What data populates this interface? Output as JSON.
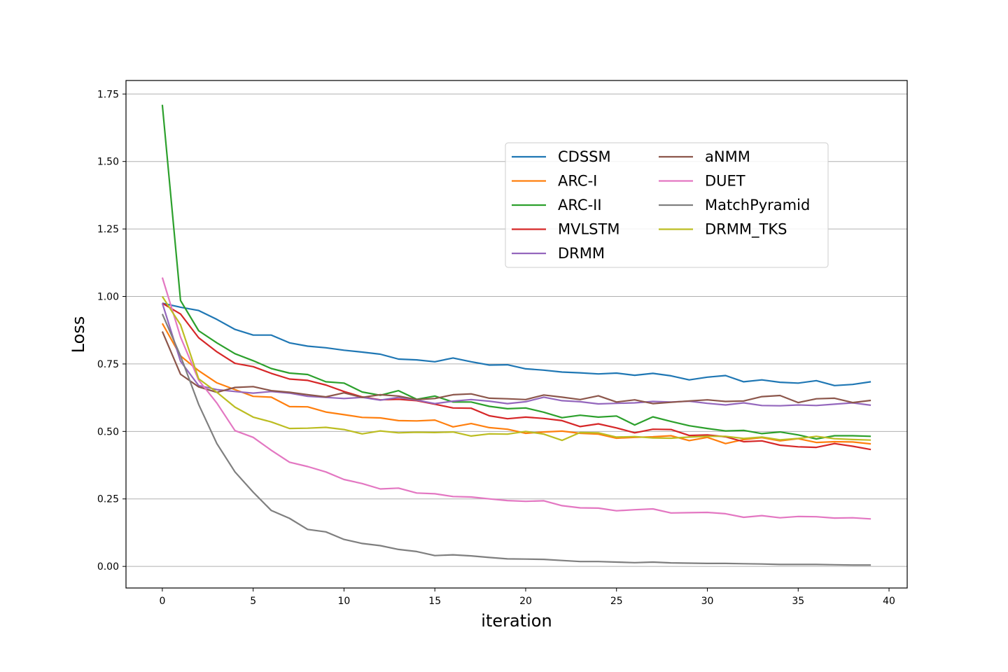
{
  "chart_data": {
    "type": "line",
    "title": "",
    "xlabel": "iteration",
    "ylabel": "Loss",
    "xlim": [
      -2,
      41
    ],
    "ylim": [
      -0.08,
      1.8
    ],
    "xticks": [
      0,
      5,
      10,
      15,
      20,
      25,
      30,
      35,
      40
    ],
    "xtick_labels": [
      "0",
      "5",
      "10",
      "15",
      "20",
      "25",
      "30",
      "35",
      "40"
    ],
    "yticks": [
      0.0,
      0.25,
      0.5,
      0.75,
      1.0,
      1.25,
      1.5,
      1.75
    ],
    "ytick_labels": [
      "0.00",
      "0.25",
      "0.50",
      "0.75",
      "1.00",
      "1.25",
      "1.50",
      "1.75"
    ],
    "grid": "horizontal",
    "legend_placement": "upper-right",
    "legend_columns": 2,
    "x": [
      0,
      1,
      2,
      3,
      4,
      5,
      6,
      7,
      8,
      9,
      10,
      11,
      12,
      13,
      14,
      15,
      16,
      17,
      18,
      19,
      20,
      21,
      22,
      23,
      24,
      25,
      26,
      27,
      28,
      29,
      30,
      31,
      32,
      33,
      34,
      35,
      36,
      37,
      38,
      39
    ],
    "series": [
      {
        "name": "CDSSM",
        "color": "#1f77b4",
        "values": [
          0.975,
          0.96,
          0.948,
          0.915,
          0.878,
          0.857,
          0.857,
          0.828,
          0.816,
          0.81,
          0.801,
          0.794,
          0.786,
          0.768,
          0.765,
          0.758,
          0.772,
          0.758,
          0.746,
          0.747,
          0.732,
          0.727,
          0.72,
          0.717,
          0.713,
          0.716,
          0.708,
          0.715,
          0.706,
          0.691,
          0.701,
          0.707,
          0.684,
          0.691,
          0.682,
          0.679,
          0.688,
          0.67,
          0.674,
          0.684
        ]
      },
      {
        "name": "ARC-I",
        "color": "#ff7f0e",
        "values": [
          0.9,
          0.78,
          0.725,
          0.68,
          0.655,
          0.63,
          0.627,
          0.592,
          0.591,
          0.572,
          0.562,
          0.552,
          0.55,
          0.54,
          0.539,
          0.542,
          0.517,
          0.529,
          0.514,
          0.508,
          0.493,
          0.498,
          0.501,
          0.493,
          0.49,
          0.475,
          0.478,
          0.48,
          0.484,
          0.466,
          0.478,
          0.455,
          0.47,
          0.477,
          0.465,
          0.473,
          0.459,
          0.462,
          0.461,
          0.454
        ]
      },
      {
        "name": "ARC-II",
        "color": "#2ca02c",
        "values": [
          1.71,
          0.985,
          0.873,
          0.828,
          0.788,
          0.762,
          0.733,
          0.716,
          0.711,
          0.684,
          0.679,
          0.646,
          0.634,
          0.651,
          0.619,
          0.631,
          0.609,
          0.609,
          0.593,
          0.584,
          0.587,
          0.571,
          0.551,
          0.56,
          0.553,
          0.557,
          0.524,
          0.554,
          0.537,
          0.521,
          0.511,
          0.502,
          0.504,
          0.492,
          0.498,
          0.487,
          0.472,
          0.484,
          0.484,
          0.482
        ]
      },
      {
        "name": "MVLSTM",
        "color": "#d62728",
        "values": [
          0.975,
          0.935,
          0.847,
          0.795,
          0.752,
          0.74,
          0.715,
          0.694,
          0.689,
          0.672,
          0.648,
          0.628,
          0.617,
          0.619,
          0.614,
          0.601,
          0.587,
          0.586,
          0.558,
          0.547,
          0.553,
          0.548,
          0.54,
          0.518,
          0.528,
          0.513,
          0.495,
          0.508,
          0.507,
          0.485,
          0.487,
          0.48,
          0.462,
          0.465,
          0.449,
          0.443,
          0.441,
          0.455,
          0.445,
          0.433
        ]
      },
      {
        "name": "DRMM",
        "color": "#9467bd",
        "values": [
          0.975,
          0.76,
          0.67,
          0.655,
          0.648,
          0.642,
          0.648,
          0.642,
          0.63,
          0.626,
          0.622,
          0.626,
          0.616,
          0.626,
          0.616,
          0.603,
          0.612,
          0.618,
          0.612,
          0.603,
          0.61,
          0.627,
          0.614,
          0.61,
          0.602,
          0.604,
          0.606,
          0.611,
          0.609,
          0.612,
          0.604,
          0.598,
          0.606,
          0.596,
          0.595,
          0.598,
          0.596,
          0.601,
          0.606,
          0.597
        ]
      },
      {
        "name": "aNMM",
        "color": "#8c564b",
        "values": [
          0.87,
          0.712,
          0.665,
          0.645,
          0.663,
          0.666,
          0.651,
          0.645,
          0.636,
          0.628,
          0.643,
          0.626,
          0.636,
          0.631,
          0.618,
          0.622,
          0.636,
          0.639,
          0.623,
          0.621,
          0.618,
          0.635,
          0.627,
          0.618,
          0.632,
          0.609,
          0.617,
          0.603,
          0.608,
          0.613,
          0.617,
          0.611,
          0.613,
          0.629,
          0.633,
          0.607,
          0.621,
          0.623,
          0.607,
          0.615
        ]
      },
      {
        "name": "DUET",
        "color": "#e377c2",
        "values": [
          1.07,
          0.85,
          0.69,
          0.605,
          0.503,
          0.478,
          0.43,
          0.386,
          0.37,
          0.35,
          0.322,
          0.307,
          0.287,
          0.29,
          0.272,
          0.269,
          0.259,
          0.257,
          0.25,
          0.244,
          0.241,
          0.243,
          0.225,
          0.217,
          0.216,
          0.206,
          0.21,
          0.213,
          0.198,
          0.199,
          0.2,
          0.195,
          0.182,
          0.188,
          0.18,
          0.185,
          0.184,
          0.179,
          0.18,
          0.176
        ]
      },
      {
        "name": "MatchPyramid",
        "color": "#7f7f7f",
        "values": [
          0.935,
          0.78,
          0.6,
          0.455,
          0.35,
          0.275,
          0.207,
          0.178,
          0.137,
          0.128,
          0.1,
          0.085,
          0.077,
          0.063,
          0.055,
          0.04,
          0.043,
          0.039,
          0.033,
          0.028,
          0.027,
          0.026,
          0.022,
          0.018,
          0.018,
          0.016,
          0.014,
          0.016,
          0.013,
          0.012,
          0.011,
          0.011,
          0.01,
          0.009,
          0.007,
          0.007,
          0.007,
          0.006,
          0.005,
          0.005
        ]
      },
      {
        "name": "DRMM_TKS",
        "color": "#bcbd22",
        "values": [
          1.0,
          0.895,
          0.695,
          0.645,
          0.59,
          0.553,
          0.535,
          0.511,
          0.512,
          0.515,
          0.507,
          0.491,
          0.502,
          0.495,
          0.497,
          0.496,
          0.498,
          0.483,
          0.491,
          0.49,
          0.5,
          0.49,
          0.467,
          0.496,
          0.495,
          0.479,
          0.481,
          0.476,
          0.475,
          0.479,
          0.482,
          0.482,
          0.474,
          0.479,
          0.469,
          0.474,
          0.482,
          0.473,
          0.47,
          0.468
        ]
      }
    ]
  }
}
